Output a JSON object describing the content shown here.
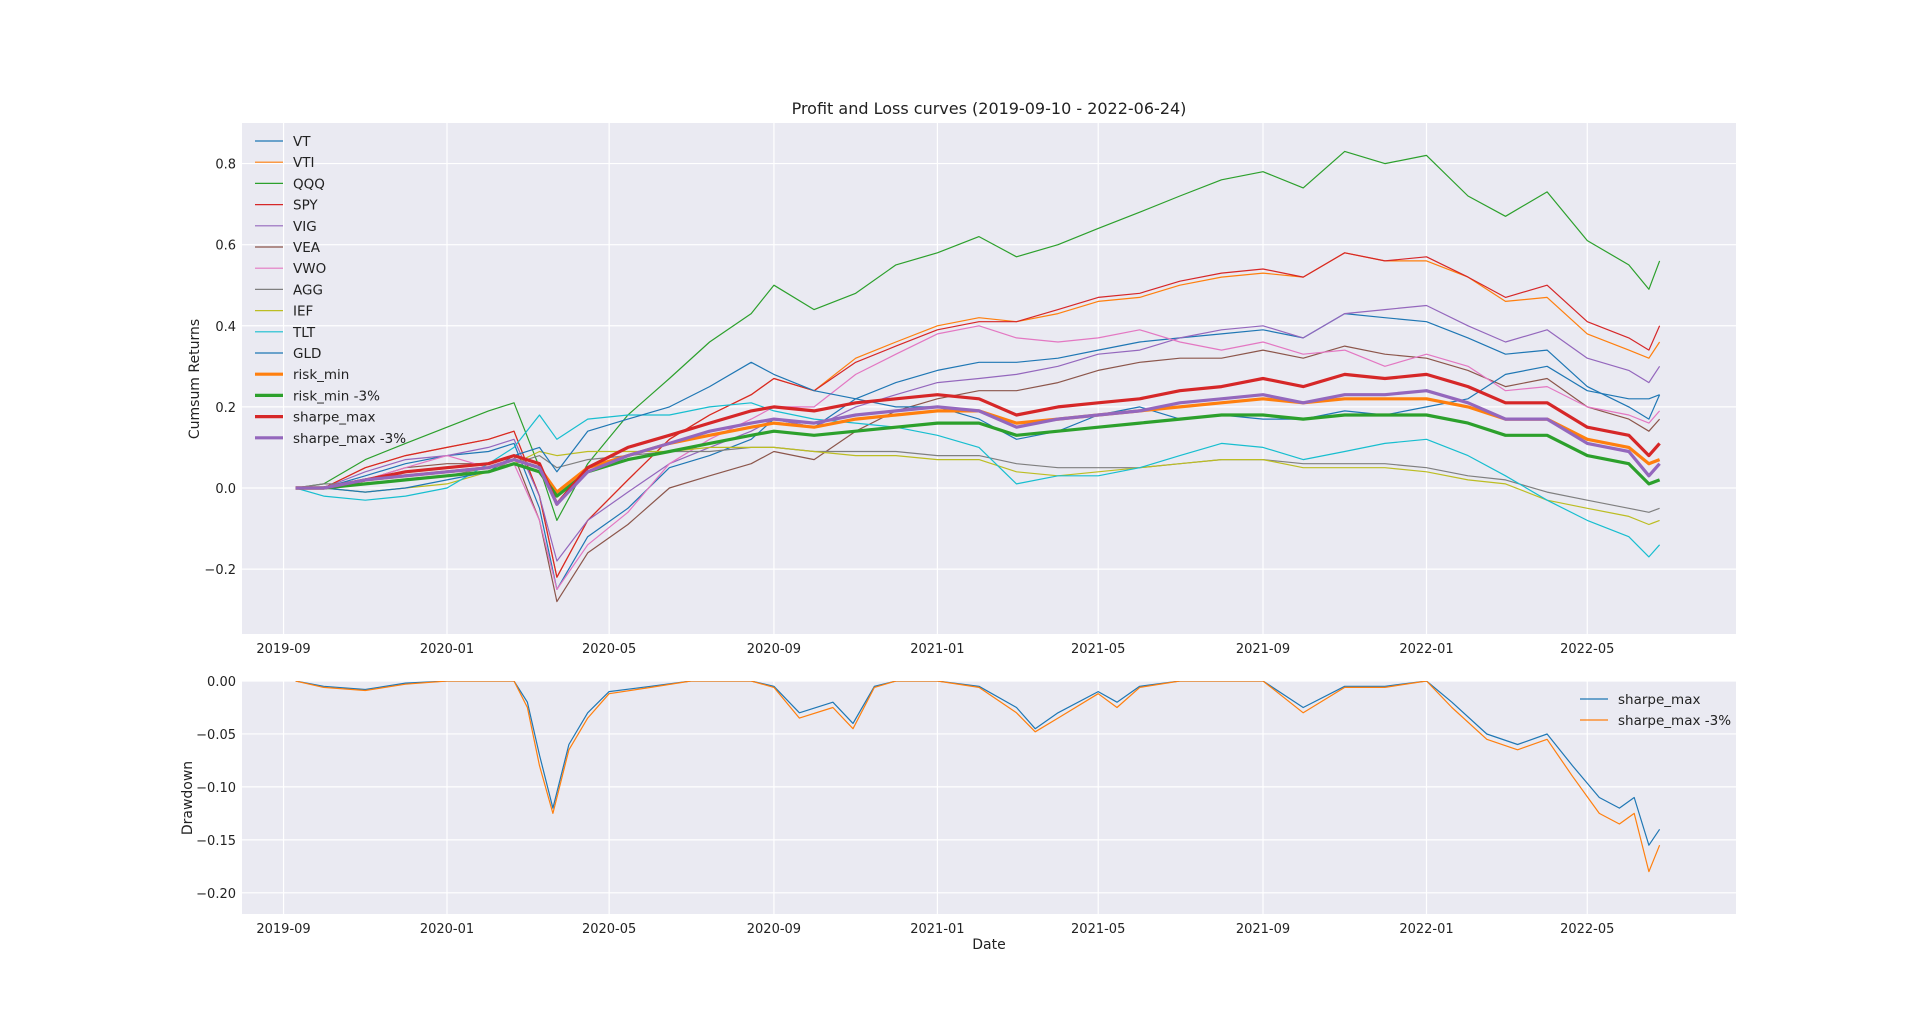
{
  "chart_data": [
    {
      "type": "line",
      "title": "Profit and Loss curves (2019-09-10 - 2022-06-24)",
      "xlabel": "",
      "ylabel": "Cumsum Returns",
      "xlim": [
        "2019-08-01",
        "2022-08-20"
      ],
      "ylim": [
        -0.36,
        0.9
      ],
      "xticks": [
        "2019-09",
        "2020-01",
        "2020-05",
        "2020-09",
        "2021-01",
        "2021-05",
        "2021-09",
        "2022-01",
        "2022-05"
      ],
      "yticks": [
        0.8,
        0.6,
        0.4,
        0.2,
        0.0,
        -0.2
      ],
      "ytick_labels": [
        "0.8",
        "0.6",
        "0.4",
        "0.2",
        "0.0",
        "−0.2"
      ],
      "grid": true,
      "legend_position": "top-left",
      "x": [
        "2019-09-10",
        "2019-10-01",
        "2019-11-01",
        "2019-12-01",
        "2020-01-01",
        "2020-02-01",
        "2020-02-20",
        "2020-03-10",
        "2020-03-23",
        "2020-04-15",
        "2020-05-15",
        "2020-06-15",
        "2020-07-15",
        "2020-08-15",
        "2020-09-01",
        "2020-10-01",
        "2020-11-01",
        "2020-12-01",
        "2021-01-01",
        "2021-02-01",
        "2021-03-01",
        "2021-04-01",
        "2021-05-01",
        "2021-06-01",
        "2021-07-01",
        "2021-08-01",
        "2021-09-01",
        "2021-10-01",
        "2021-11-01",
        "2021-12-01",
        "2022-01-01",
        "2022-02-01",
        "2022-03-01",
        "2022-04-01",
        "2022-05-01",
        "2022-06-01",
        "2022-06-16",
        "2022-06-24"
      ],
      "series": [
        {
          "name": "VT",
          "color": "#1f77b4",
          "width": 1.2,
          "values": [
            0.0,
            0.0,
            0.03,
            0.06,
            0.08,
            0.09,
            0.11,
            -0.05,
            -0.25,
            -0.12,
            -0.05,
            0.05,
            0.08,
            0.12,
            0.17,
            0.15,
            0.22,
            0.26,
            0.29,
            0.31,
            0.31,
            0.32,
            0.34,
            0.36,
            0.37,
            0.38,
            0.39,
            0.37,
            0.43,
            0.42,
            0.41,
            0.37,
            0.33,
            0.34,
            0.25,
            0.2,
            0.17,
            0.23
          ]
        },
        {
          "name": "VTI",
          "color": "#ff7f0e",
          "width": 1.2,
          "values": [
            0.0,
            0.0,
            0.05,
            0.08,
            0.1,
            0.12,
            0.14,
            -0.02,
            -0.22,
            -0.08,
            0.02,
            0.12,
            0.18,
            0.23,
            0.27,
            0.24,
            0.32,
            0.36,
            0.4,
            0.42,
            0.41,
            0.43,
            0.46,
            0.47,
            0.5,
            0.52,
            0.53,
            0.52,
            0.58,
            0.56,
            0.56,
            0.52,
            0.46,
            0.47,
            0.38,
            0.34,
            0.32,
            0.36
          ]
        },
        {
          "name": "QQQ",
          "color": "#2ca02c",
          "width": 1.2,
          "values": [
            0.0,
            0.01,
            0.07,
            0.11,
            0.15,
            0.19,
            0.21,
            0.05,
            -0.08,
            0.06,
            0.18,
            0.27,
            0.36,
            0.43,
            0.5,
            0.44,
            0.48,
            0.55,
            0.58,
            0.62,
            0.57,
            0.6,
            0.64,
            0.68,
            0.72,
            0.76,
            0.78,
            0.74,
            0.83,
            0.8,
            0.82,
            0.72,
            0.67,
            0.73,
            0.61,
            0.55,
            0.49,
            0.56
          ]
        },
        {
          "name": "SPY",
          "color": "#d62728",
          "width": 1.2,
          "values": [
            0.0,
            0.0,
            0.05,
            0.08,
            0.1,
            0.12,
            0.14,
            -0.02,
            -0.22,
            -0.08,
            0.02,
            0.12,
            0.18,
            0.23,
            0.27,
            0.24,
            0.31,
            0.35,
            0.39,
            0.41,
            0.41,
            0.44,
            0.47,
            0.48,
            0.51,
            0.53,
            0.54,
            0.52,
            0.58,
            0.56,
            0.57,
            0.52,
            0.47,
            0.5,
            0.41,
            0.37,
            0.34,
            0.4
          ]
        },
        {
          "name": "VIG",
          "color": "#9467bd",
          "width": 1.2,
          "values": [
            0.0,
            0.0,
            0.04,
            0.07,
            0.08,
            0.1,
            0.12,
            -0.02,
            -0.18,
            -0.08,
            -0.01,
            0.06,
            0.1,
            0.14,
            0.17,
            0.15,
            0.2,
            0.23,
            0.26,
            0.27,
            0.28,
            0.3,
            0.33,
            0.34,
            0.37,
            0.39,
            0.4,
            0.37,
            0.43,
            0.44,
            0.45,
            0.4,
            0.36,
            0.39,
            0.32,
            0.29,
            0.26,
            0.3
          ]
        },
        {
          "name": "VEA",
          "color": "#8c564b",
          "width": 1.2,
          "values": [
            0.0,
            0.0,
            0.02,
            0.05,
            0.06,
            0.06,
            0.08,
            -0.08,
            -0.28,
            -0.16,
            -0.09,
            0.0,
            0.03,
            0.06,
            0.09,
            0.07,
            0.14,
            0.19,
            0.22,
            0.24,
            0.24,
            0.26,
            0.29,
            0.31,
            0.32,
            0.32,
            0.34,
            0.32,
            0.35,
            0.33,
            0.32,
            0.29,
            0.25,
            0.27,
            0.2,
            0.17,
            0.14,
            0.17
          ]
        },
        {
          "name": "VWO",
          "color": "#e377c2",
          "width": 1.2,
          "values": [
            0.0,
            0.0,
            0.02,
            0.05,
            0.08,
            0.05,
            0.06,
            -0.08,
            -0.25,
            -0.14,
            -0.06,
            0.06,
            0.12,
            0.17,
            0.2,
            0.2,
            0.28,
            0.33,
            0.38,
            0.4,
            0.37,
            0.36,
            0.37,
            0.39,
            0.36,
            0.34,
            0.36,
            0.33,
            0.34,
            0.3,
            0.33,
            0.3,
            0.24,
            0.25,
            0.2,
            0.18,
            0.16,
            0.19
          ]
        },
        {
          "name": "AGG",
          "color": "#7f7f7f",
          "width": 1.2,
          "values": [
            0.0,
            0.01,
            0.01,
            0.02,
            0.03,
            0.05,
            0.06,
            0.08,
            0.05,
            0.07,
            0.08,
            0.09,
            0.09,
            0.1,
            0.1,
            0.09,
            0.09,
            0.09,
            0.08,
            0.08,
            0.06,
            0.05,
            0.05,
            0.05,
            0.06,
            0.07,
            0.07,
            0.06,
            0.06,
            0.06,
            0.05,
            0.03,
            0.02,
            -0.01,
            -0.03,
            -0.05,
            -0.06,
            -0.05
          ]
        },
        {
          "name": "IEF",
          "color": "#bcbd22",
          "width": 1.2,
          "values": [
            0.0,
            0.0,
            -0.01,
            0.0,
            0.01,
            0.04,
            0.06,
            0.09,
            0.08,
            0.09,
            0.09,
            0.09,
            0.1,
            0.1,
            0.1,
            0.09,
            0.08,
            0.08,
            0.07,
            0.07,
            0.04,
            0.03,
            0.04,
            0.05,
            0.06,
            0.07,
            0.07,
            0.05,
            0.05,
            0.05,
            0.04,
            0.02,
            0.01,
            -0.03,
            -0.05,
            -0.07,
            -0.09,
            -0.08
          ]
        },
        {
          "name": "TLT",
          "color": "#17becf",
          "width": 1.2,
          "values": [
            0.0,
            -0.02,
            -0.03,
            -0.02,
            0.0,
            0.06,
            0.1,
            0.18,
            0.12,
            0.17,
            0.18,
            0.18,
            0.2,
            0.21,
            0.19,
            0.17,
            0.16,
            0.15,
            0.13,
            0.1,
            0.01,
            0.03,
            0.03,
            0.05,
            0.08,
            0.11,
            0.1,
            0.07,
            0.09,
            0.11,
            0.12,
            0.08,
            0.03,
            -0.03,
            -0.08,
            -0.12,
            -0.17,
            -0.14
          ]
        },
        {
          "name": "GLD",
          "color": "#1f77b4",
          "width": 1.2,
          "values": [
            0.0,
            0.0,
            -0.01,
            0.0,
            0.02,
            0.04,
            0.08,
            0.1,
            0.04,
            0.14,
            0.17,
            0.2,
            0.25,
            0.31,
            0.28,
            0.24,
            0.22,
            0.2,
            0.2,
            0.17,
            0.12,
            0.14,
            0.18,
            0.2,
            0.17,
            0.18,
            0.17,
            0.17,
            0.19,
            0.18,
            0.2,
            0.22,
            0.28,
            0.3,
            0.24,
            0.22,
            0.22,
            0.23
          ]
        },
        {
          "name": "risk_min",
          "color": "#ff7f0e",
          "width": 3.2,
          "values": [
            0.0,
            0.0,
            0.02,
            0.03,
            0.04,
            0.05,
            0.07,
            0.05,
            -0.01,
            0.05,
            0.08,
            0.11,
            0.13,
            0.15,
            0.16,
            0.15,
            0.17,
            0.18,
            0.19,
            0.19,
            0.16,
            0.17,
            0.18,
            0.19,
            0.2,
            0.21,
            0.22,
            0.21,
            0.22,
            0.22,
            0.22,
            0.2,
            0.17,
            0.17,
            0.12,
            0.1,
            0.06,
            0.07
          ]
        },
        {
          "name": "risk_min -3%",
          "color": "#2ca02c",
          "width": 3.2,
          "values": [
            0.0,
            0.0,
            0.01,
            0.02,
            0.03,
            0.04,
            0.06,
            0.04,
            -0.02,
            0.04,
            0.07,
            0.09,
            0.11,
            0.13,
            0.14,
            0.13,
            0.14,
            0.15,
            0.16,
            0.16,
            0.13,
            0.14,
            0.15,
            0.16,
            0.17,
            0.18,
            0.18,
            0.17,
            0.18,
            0.18,
            0.18,
            0.16,
            0.13,
            0.13,
            0.08,
            0.06,
            0.01,
            0.02
          ]
        },
        {
          "name": "sharpe_max",
          "color": "#d62728",
          "width": 3.2,
          "values": [
            0.0,
            0.0,
            0.02,
            0.04,
            0.05,
            0.06,
            0.08,
            0.06,
            -0.04,
            0.05,
            0.1,
            0.13,
            0.16,
            0.19,
            0.2,
            0.19,
            0.21,
            0.22,
            0.23,
            0.22,
            0.18,
            0.2,
            0.21,
            0.22,
            0.24,
            0.25,
            0.27,
            0.25,
            0.28,
            0.27,
            0.28,
            0.25,
            0.21,
            0.21,
            0.15,
            0.13,
            0.08,
            0.11
          ]
        },
        {
          "name": "sharpe_max -3%",
          "color": "#9467bd",
          "width": 3.2,
          "values": [
            0.0,
            0.0,
            0.02,
            0.03,
            0.04,
            0.05,
            0.07,
            0.05,
            -0.04,
            0.04,
            0.08,
            0.11,
            0.14,
            0.16,
            0.17,
            0.16,
            0.18,
            0.19,
            0.2,
            0.19,
            0.15,
            0.17,
            0.18,
            0.19,
            0.21,
            0.22,
            0.23,
            0.21,
            0.23,
            0.23,
            0.24,
            0.21,
            0.17,
            0.17,
            0.11,
            0.09,
            0.03,
            0.06
          ]
        }
      ]
    },
    {
      "type": "line",
      "title": "",
      "xlabel": "Date",
      "ylabel": "Drawdown",
      "xlim": [
        "2019-08-01",
        "2022-08-20"
      ],
      "ylim": [
        -0.22,
        0.0
      ],
      "xticks": [
        "2019-09",
        "2020-01",
        "2020-05",
        "2020-09",
        "2021-01",
        "2021-05",
        "2021-09",
        "2022-01",
        "2022-05"
      ],
      "yticks": [
        0.0,
        -0.05,
        -0.1,
        -0.15,
        -0.2
      ],
      "ytick_labels": [
        "0.00",
        "−0.05",
        "−0.10",
        "−0.15",
        "−0.20"
      ],
      "grid": true,
      "legend_position": "top-right",
      "x": [
        "2019-09-10",
        "2019-10-01",
        "2019-11-01",
        "2019-12-01",
        "2020-01-01",
        "2020-02-01",
        "2020-02-20",
        "2020-03-01",
        "2020-03-10",
        "2020-03-20",
        "2020-04-01",
        "2020-04-15",
        "2020-05-01",
        "2020-06-01",
        "2020-07-01",
        "2020-08-15",
        "2020-09-01",
        "2020-09-20",
        "2020-10-15",
        "2020-10-30",
        "2020-11-15",
        "2020-12-01",
        "2021-01-01",
        "2021-02-01",
        "2021-03-01",
        "2021-03-15",
        "2021-04-01",
        "2021-05-01",
        "2021-05-15",
        "2021-06-01",
        "2021-07-01",
        "2021-08-01",
        "2021-09-01",
        "2021-10-01",
        "2021-11-01",
        "2021-12-01",
        "2022-01-01",
        "2022-01-20",
        "2022-02-15",
        "2022-03-10",
        "2022-04-01",
        "2022-04-20",
        "2022-05-10",
        "2022-05-25",
        "2022-06-05",
        "2022-06-16",
        "2022-06-24"
      ],
      "series": [
        {
          "name": "sharpe_max",
          "color": "#1f77b4",
          "width": 1.2,
          "values": [
            0.0,
            -0.005,
            -0.008,
            -0.002,
            0.0,
            0.0,
            0.0,
            -0.02,
            -0.07,
            -0.12,
            -0.06,
            -0.03,
            -0.01,
            -0.005,
            0.0,
            0.0,
            -0.005,
            -0.03,
            -0.02,
            -0.04,
            -0.005,
            0.0,
            0.0,
            -0.005,
            -0.025,
            -0.045,
            -0.03,
            -0.01,
            -0.02,
            -0.005,
            0.0,
            0.0,
            0.0,
            -0.025,
            -0.005,
            -0.005,
            0.0,
            -0.02,
            -0.05,
            -0.06,
            -0.05,
            -0.08,
            -0.11,
            -0.12,
            -0.11,
            -0.155,
            -0.14
          ]
        },
        {
          "name": "sharpe_max -3%",
          "color": "#ff7f0e",
          "width": 1.2,
          "values": [
            0.0,
            -0.006,
            -0.009,
            -0.003,
            0.0,
            0.0,
            0.0,
            -0.025,
            -0.08,
            -0.125,
            -0.065,
            -0.035,
            -0.012,
            -0.006,
            0.0,
            0.0,
            -0.006,
            -0.035,
            -0.025,
            -0.045,
            -0.006,
            0.0,
            0.0,
            -0.006,
            -0.03,
            -0.048,
            -0.035,
            -0.012,
            -0.025,
            -0.006,
            0.0,
            0.0,
            0.0,
            -0.03,
            -0.006,
            -0.006,
            0.0,
            -0.025,
            -0.055,
            -0.065,
            -0.055,
            -0.09,
            -0.125,
            -0.135,
            -0.125,
            -0.18,
            -0.155
          ]
        }
      ]
    }
  ]
}
